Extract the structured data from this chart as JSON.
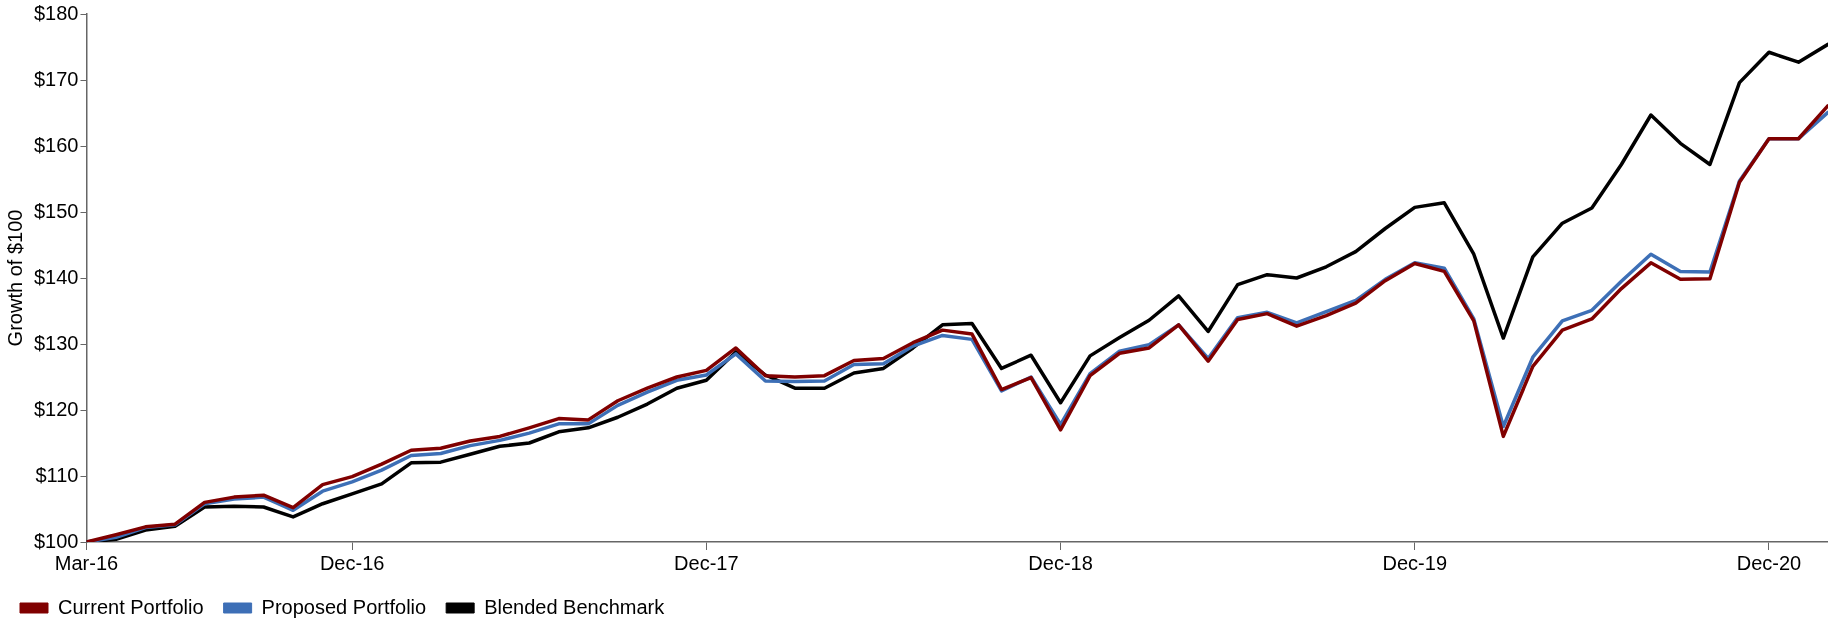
{
  "chart_data": {
    "type": "line",
    "ylabel": "Growth of $100",
    "x": [
      "2016-03",
      "2016-04",
      "2016-05",
      "2016-06",
      "2016-07",
      "2016-08",
      "2016-09",
      "2016-10",
      "2016-11",
      "2016-12",
      "2017-01",
      "2017-02",
      "2017-03",
      "2017-04",
      "2017-05",
      "2017-06",
      "2017-07",
      "2017-08",
      "2017-09",
      "2017-10",
      "2017-11",
      "2017-12",
      "2018-01",
      "2018-02",
      "2018-03",
      "2018-04",
      "2018-05",
      "2018-06",
      "2018-07",
      "2018-08",
      "2018-09",
      "2018-10",
      "2018-11",
      "2018-12",
      "2019-01",
      "2019-02",
      "2019-03",
      "2019-04",
      "2019-05",
      "2019-06",
      "2019-07",
      "2019-08",
      "2019-09",
      "2019-10",
      "2019-11",
      "2019-12",
      "2020-01",
      "2020-02",
      "2020-03",
      "2020-04",
      "2020-05",
      "2020-06",
      "2020-07",
      "2020-08",
      "2020-09",
      "2020-10",
      "2020-11",
      "2020-12",
      "2021-01",
      "2021-02"
    ],
    "series": [
      {
        "name": "Current Portfolio",
        "color": "#800000",
        "values": [
          100,
          101.1,
          102.3,
          102.7,
          106.0,
          106.8,
          107.1,
          105.2,
          108.7,
          109.9,
          111.8,
          113.9,
          114.2,
          115.3,
          116.0,
          117.3,
          118.7,
          118.5,
          121.4,
          123.3,
          125.0,
          126.0,
          129.4,
          125.2,
          125.0,
          125.2,
          127.5,
          127.8,
          130.2,
          132.1,
          131.5,
          123.1,
          124.9,
          117.0,
          125.2,
          128.6,
          129.4,
          132.9,
          127.4,
          133.7,
          134.6,
          132.7,
          134.3,
          136.2,
          139.6,
          142.2,
          141.0,
          133.5,
          116.0,
          126.6,
          132.1,
          133.8,
          138.4,
          142.3,
          139.8,
          139.9,
          154.5,
          161.1,
          161.1,
          166.1
        ]
      },
      {
        "name": "Proposed Portfolio",
        "color": "#3d6fb6",
        "values": [
          100,
          100.7,
          102.2,
          102.6,
          105.8,
          106.5,
          106.8,
          104.8,
          107.7,
          109.1,
          110.9,
          113.1,
          113.4,
          114.6,
          115.4,
          116.5,
          117.9,
          117.9,
          120.7,
          122.7,
          124.5,
          125.3,
          128.5,
          124.4,
          124.3,
          124.4,
          126.9,
          127.0,
          129.7,
          131.3,
          130.7,
          122.9,
          125.0,
          117.8,
          125.5,
          128.9,
          129.9,
          132.9,
          127.8,
          134.0,
          134.8,
          133.2,
          134.9,
          136.6,
          139.8,
          142.3,
          141.5,
          133.8,
          117.5,
          128.0,
          133.5,
          135.1,
          139.5,
          143.6,
          141.0,
          140.9,
          154.7,
          161.1,
          161.1,
          165.1
        ]
      },
      {
        "name": "Blended Benchmark",
        "color": "#000000",
        "values": [
          100,
          100.4,
          101.8,
          102.4,
          105.3,
          105.4,
          105.3,
          103.8,
          105.8,
          107.3,
          108.8,
          112.0,
          112.1,
          113.3,
          114.5,
          115.0,
          116.7,
          117.3,
          118.9,
          120.9,
          123.3,
          124.5,
          128.8,
          125.3,
          123.3,
          123.3,
          125.6,
          126.3,
          129.4,
          132.9,
          133.1,
          126.3,
          128.3,
          121.1,
          128.2,
          131.0,
          133.6,
          137.3,
          131.9,
          139.0,
          140.5,
          140.0,
          141.7,
          144.0,
          147.5,
          150.7,
          151.4,
          143.6,
          130.9,
          143.2,
          148.3,
          150.6,
          157.2,
          164.7,
          160.4,
          157.2,
          169.6,
          174.2,
          172.7,
          175.4
        ]
      }
    ],
    "xlim": [
      "2016-03",
      "2021-02"
    ],
    "xticks": [
      {
        "value": "2016-03",
        "label": "Mar-16"
      },
      {
        "value": "2016-12",
        "label": "Dec-16"
      },
      {
        "value": "2017-12",
        "label": "Dec-17"
      },
      {
        "value": "2018-12",
        "label": "Dec-18"
      },
      {
        "value": "2019-12",
        "label": "Dec-19"
      },
      {
        "value": "2020-12",
        "label": "Dec-20"
      }
    ],
    "ylim": [
      100,
      180
    ],
    "yticks": [
      {
        "value": 100,
        "label": "$100"
      },
      {
        "value": 110,
        "label": "$110"
      },
      {
        "value": 120,
        "label": "$120"
      },
      {
        "value": 130,
        "label": "$130"
      },
      {
        "value": 140,
        "label": "$140"
      },
      {
        "value": 150,
        "label": "$150"
      },
      {
        "value": 160,
        "label": "$160"
      },
      {
        "value": 170,
        "label": "$170"
      },
      {
        "value": 180,
        "label": "$180"
      }
    ],
    "grid": false,
    "legend": "bottom left",
    "marker": "none",
    "line_style": "solid"
  }
}
